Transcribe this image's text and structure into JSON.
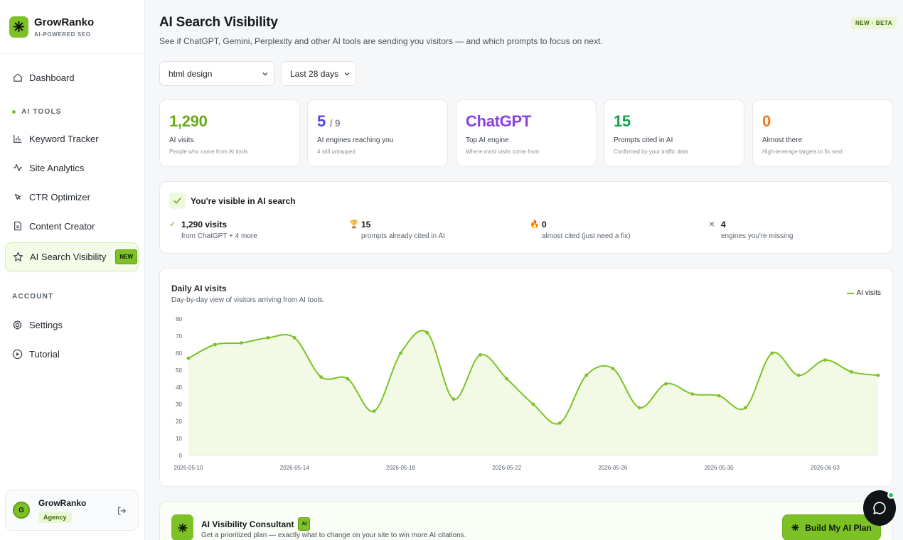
{
  "brand": {
    "name": "GrowRanko",
    "tagline": "AI-POWERED SEO"
  },
  "sidebar": {
    "dashboard": "Dashboard",
    "ai_tools_title": "AI TOOLS",
    "tools": [
      {
        "label": "Keyword Tracker",
        "icon": "bar-chart-icon"
      },
      {
        "label": "Site Analytics",
        "icon": "activity-icon"
      },
      {
        "label": "CTR Optimizer",
        "icon": "cursor-icon"
      },
      {
        "label": "Content Creator",
        "icon": "document-icon"
      },
      {
        "label": "AI Search Visibility",
        "icon": "star-icon",
        "badge": "NEW",
        "active": true
      }
    ],
    "account_title": "ACCOUNT",
    "account": [
      {
        "label": "Settings",
        "icon": "gear-icon"
      },
      {
        "label": "Tutorial",
        "icon": "play-circle-icon"
      }
    ],
    "user": {
      "initial": "G",
      "name": "GrowRanko",
      "role": "Agency"
    }
  },
  "header": {
    "title": "AI Search Visibility",
    "subtitle": "See if ChatGPT, Gemini, Perplexity and other AI tools are sending you visitors — and which prompts to focus on next.",
    "badge": "NEW · BETA"
  },
  "filters": {
    "site": "html design",
    "range": "Last 28 days"
  },
  "stats": [
    {
      "value": "1,290",
      "label": "AI visits",
      "hint": "People who came from AI tools",
      "color": "#6aaa1e"
    },
    {
      "value": "5",
      "suffix": "/ 9",
      "label": "AI engines reaching you",
      "hint": "4 still untapped",
      "color": "#4f46e5"
    },
    {
      "value": "ChatGPT",
      "label": "Top AI engine",
      "hint": "Where most visits come from",
      "color": "#8b3fe0"
    },
    {
      "value": "15",
      "label": "Prompts cited in AI",
      "hint": "Confirmed by your traffic data",
      "color": "#16a34a"
    },
    {
      "value": "0",
      "label": "Almost there",
      "hint": "High-leverage targets to fix next",
      "color": "#f0781e"
    }
  ],
  "visibility": {
    "title": "You're visible in AI search",
    "items": [
      {
        "icon": "✓",
        "value": "1,290 visits",
        "desc": "from ChatGPT + 4 more"
      },
      {
        "icon": "🏆",
        "value": "15",
        "desc": "prompts already cited in AI"
      },
      {
        "icon": "🔥",
        "value": "0",
        "desc": "almost cited (just need a fix)"
      },
      {
        "icon": "×",
        "value": "4",
        "desc": "engines you're missing"
      }
    ]
  },
  "chart": {
    "title": "Daily AI visits",
    "subtitle": "Day-by-day view of visitors arriving from AI tools.",
    "legend": "AI visits"
  },
  "chart_data": {
    "type": "area",
    "x": [
      "2026-05-10",
      "2026-05-11",
      "2026-05-12",
      "2026-05-13",
      "2026-05-14",
      "2026-05-15",
      "2026-05-16",
      "2026-05-17",
      "2026-05-18",
      "2026-05-19",
      "2026-05-20",
      "2026-05-21",
      "2026-05-22",
      "2026-05-23",
      "2026-05-24",
      "2026-05-25",
      "2026-05-26",
      "2026-05-27",
      "2026-05-28",
      "2026-05-29",
      "2026-05-30",
      "2026-05-31",
      "2026-06-01",
      "2026-06-02",
      "2026-06-03",
      "2026-06-04",
      "2026-06-05"
    ],
    "series": [
      {
        "name": "AI visits",
        "values": [
          57,
          65,
          66,
          69,
          69,
          46,
          45,
          26,
          60,
          72,
          33,
          59,
          45,
          30,
          19,
          47,
          51,
          28,
          42,
          36,
          35,
          28,
          60,
          47,
          56,
          49,
          47
        ]
      }
    ],
    "xticks": [
      "2026-05-10",
      "2026-05-14",
      "2026-05-18",
      "2026-05-22",
      "2026-05-26",
      "2026-05-30",
      "2026-06-03"
    ],
    "yticks": [
      "0",
      "10",
      "20",
      "30",
      "40",
      "50",
      "60",
      "70",
      "80"
    ],
    "ylim": [
      0,
      80
    ],
    "grid": false,
    "legend_position": "top-right",
    "color": "#7cc227"
  },
  "consultant": {
    "title": "AI Visibility Consultant",
    "badge": "AI",
    "subtitle": "Get a prioritized plan — exactly what to change on your site to win more AI citations.",
    "button": "Build My AI Plan"
  }
}
